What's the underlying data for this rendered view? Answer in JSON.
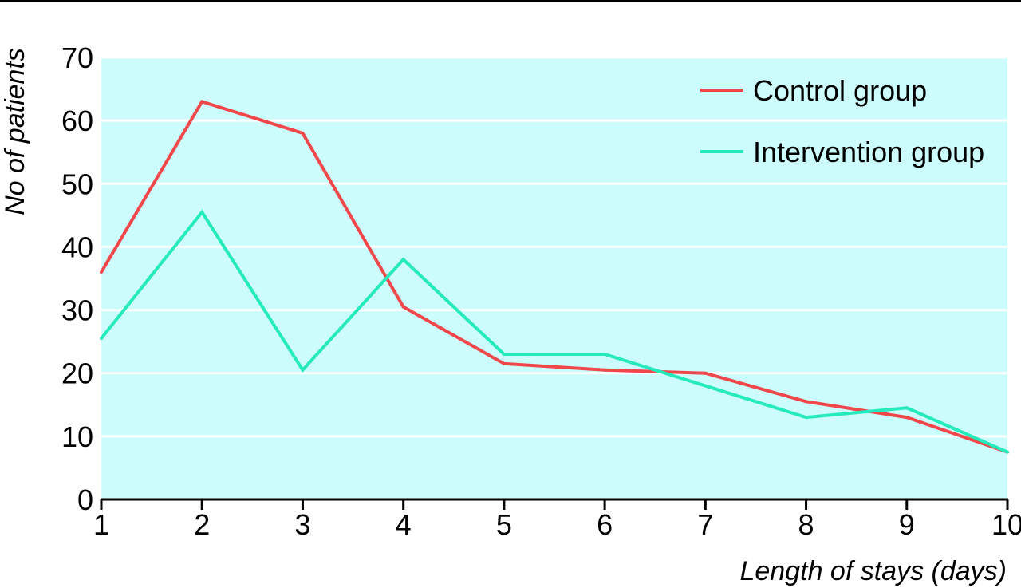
{
  "chart_data": {
    "type": "line",
    "title": "",
    "xlabel": "Length of stays (days)",
    "ylabel": "No of patients",
    "x": [
      1,
      2,
      3,
      4,
      5,
      6,
      7,
      8,
      9,
      10
    ],
    "xlim": [
      1,
      10
    ],
    "ylim": [
      0,
      70
    ],
    "yticks": [
      0,
      10,
      20,
      30,
      40,
      50,
      60,
      70
    ],
    "grid": "horizontal",
    "legend_position": "top-right",
    "background_color": "#ccfcfc",
    "series": [
      {
        "name": "Control group",
        "color": "#f0484a",
        "values": [
          36,
          63,
          58,
          30.5,
          21.5,
          20.5,
          20,
          15.5,
          13,
          7.5
        ]
      },
      {
        "name": "Intervention group",
        "color": "#25eabc",
        "values": [
          25.5,
          45.5,
          20.5,
          38,
          23,
          23,
          18,
          13,
          14.5,
          7.5
        ]
      }
    ]
  }
}
